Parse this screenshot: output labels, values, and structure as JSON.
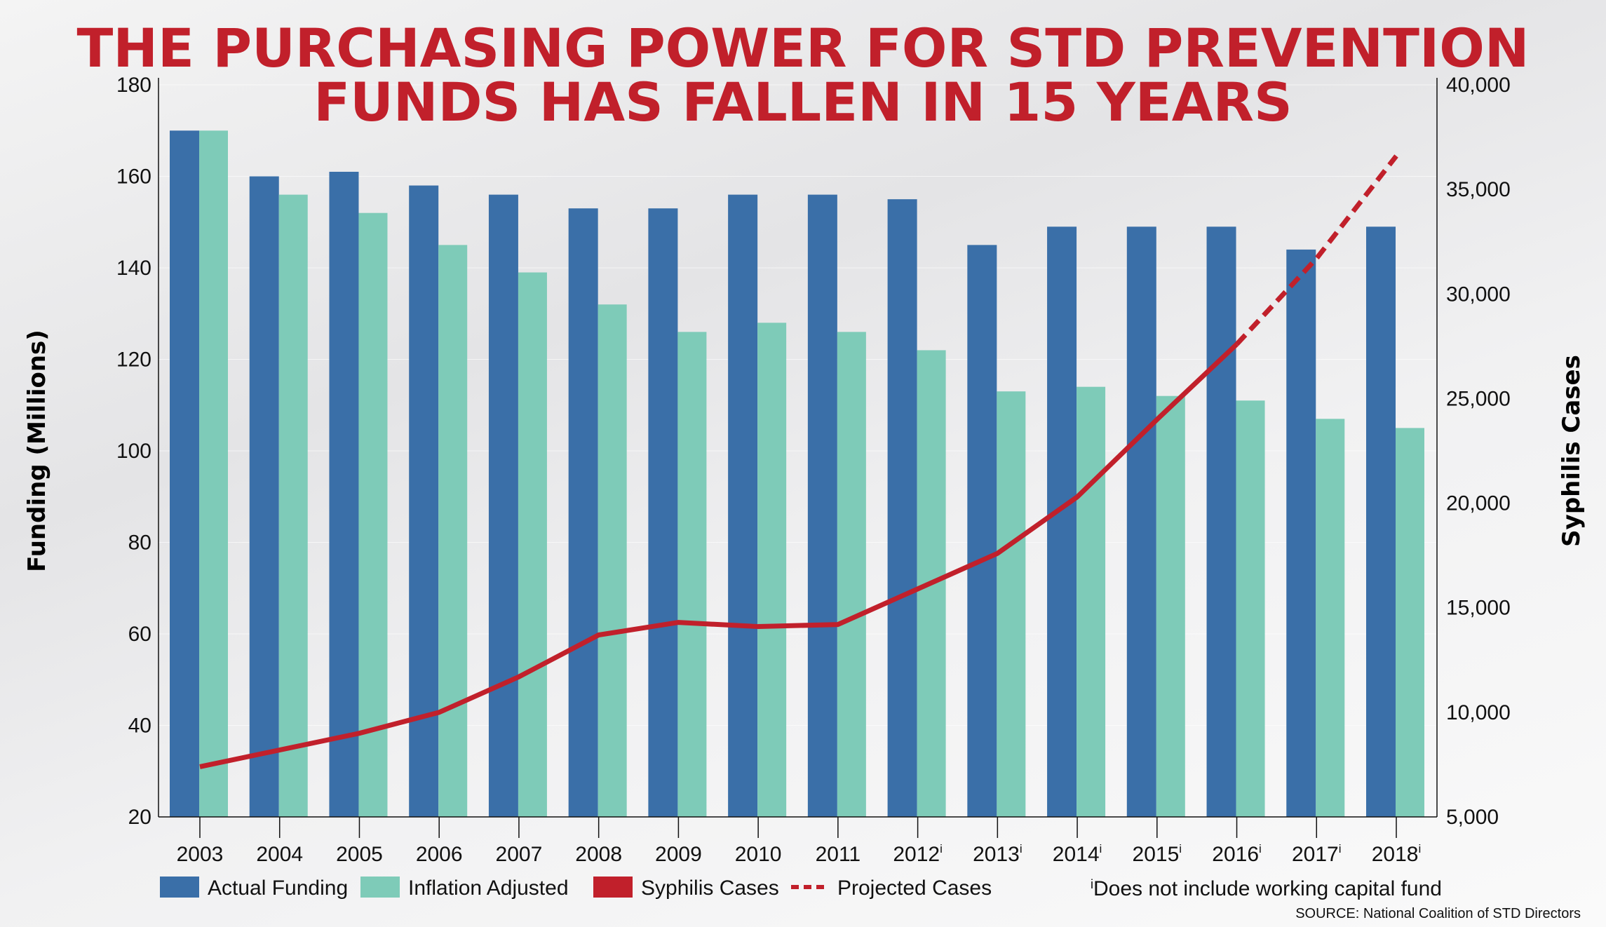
{
  "chart_data": {
    "type": "bar",
    "title": [
      "THE PURCHASING POWER FOR STD PREVENTION",
      "FUNDS HAS FALLEN IN 15 YEARS"
    ],
    "categories": [
      "2003",
      "2004",
      "2005",
      "2006",
      "2007",
      "2008",
      "2009",
      "2010",
      "2011",
      "2012",
      "2013",
      "2014",
      "2015",
      "2016",
      "2017",
      "2018"
    ],
    "category_superscripts": [
      "",
      "",
      "",
      "",
      "",
      "",
      "",
      "",
      "",
      "i",
      "i",
      "i",
      "i",
      "i",
      "i",
      "i"
    ],
    "ylabel": "Funding (Millions)",
    "ylim": [
      20,
      180
    ],
    "yticks": [
      20,
      40,
      60,
      80,
      100,
      120,
      140,
      160,
      180
    ],
    "y2label": "Syphilis Cases",
    "y2lim": [
      5000,
      40000
    ],
    "y2ticks": [
      "5,000",
      "10,000",
      "15,000",
      "20,000",
      "25,000",
      "30,000",
      "35,000",
      "40,000"
    ],
    "y2tick_values": [
      5000,
      10000,
      15000,
      20000,
      25000,
      30000,
      35000,
      40000
    ],
    "grid": true,
    "legend_position": "bottom",
    "series": [
      {
        "name": "Actual Funding",
        "type": "bar",
        "axis": "left",
        "color": "#3a6fa8",
        "values": [
          170,
          160,
          161,
          158,
          156,
          153,
          153,
          156,
          156,
          155,
          145,
          149,
          149,
          149,
          144,
          149
        ]
      },
      {
        "name": "Inflation Adjusted",
        "type": "bar",
        "axis": "left",
        "color": "#7ecbb8",
        "values": [
          170,
          156,
          152,
          145,
          139,
          132,
          126,
          128,
          126,
          122,
          113,
          114,
          112,
          111,
          107,
          105
        ]
      },
      {
        "name": "Syphilis Cases",
        "type": "line",
        "axis": "right",
        "color": "#c1202b",
        "values": [
          7400,
          8200,
          9000,
          10000,
          11700,
          13700,
          14300,
          14100,
          14200,
          15900,
          17600,
          20300,
          24000,
          27600,
          null,
          null
        ]
      },
      {
        "name": "Projected Cases",
        "type": "line-dashed",
        "axis": "right",
        "color": "#c1202b",
        "values": [
          null,
          null,
          null,
          null,
          null,
          null,
          null,
          null,
          null,
          null,
          null,
          null,
          null,
          27600,
          31700,
          36600
        ]
      }
    ],
    "footnote_mark": "i",
    "footnote": "Does not include working capital fund",
    "source": "SOURCE: National Coalition of STD Directors"
  }
}
